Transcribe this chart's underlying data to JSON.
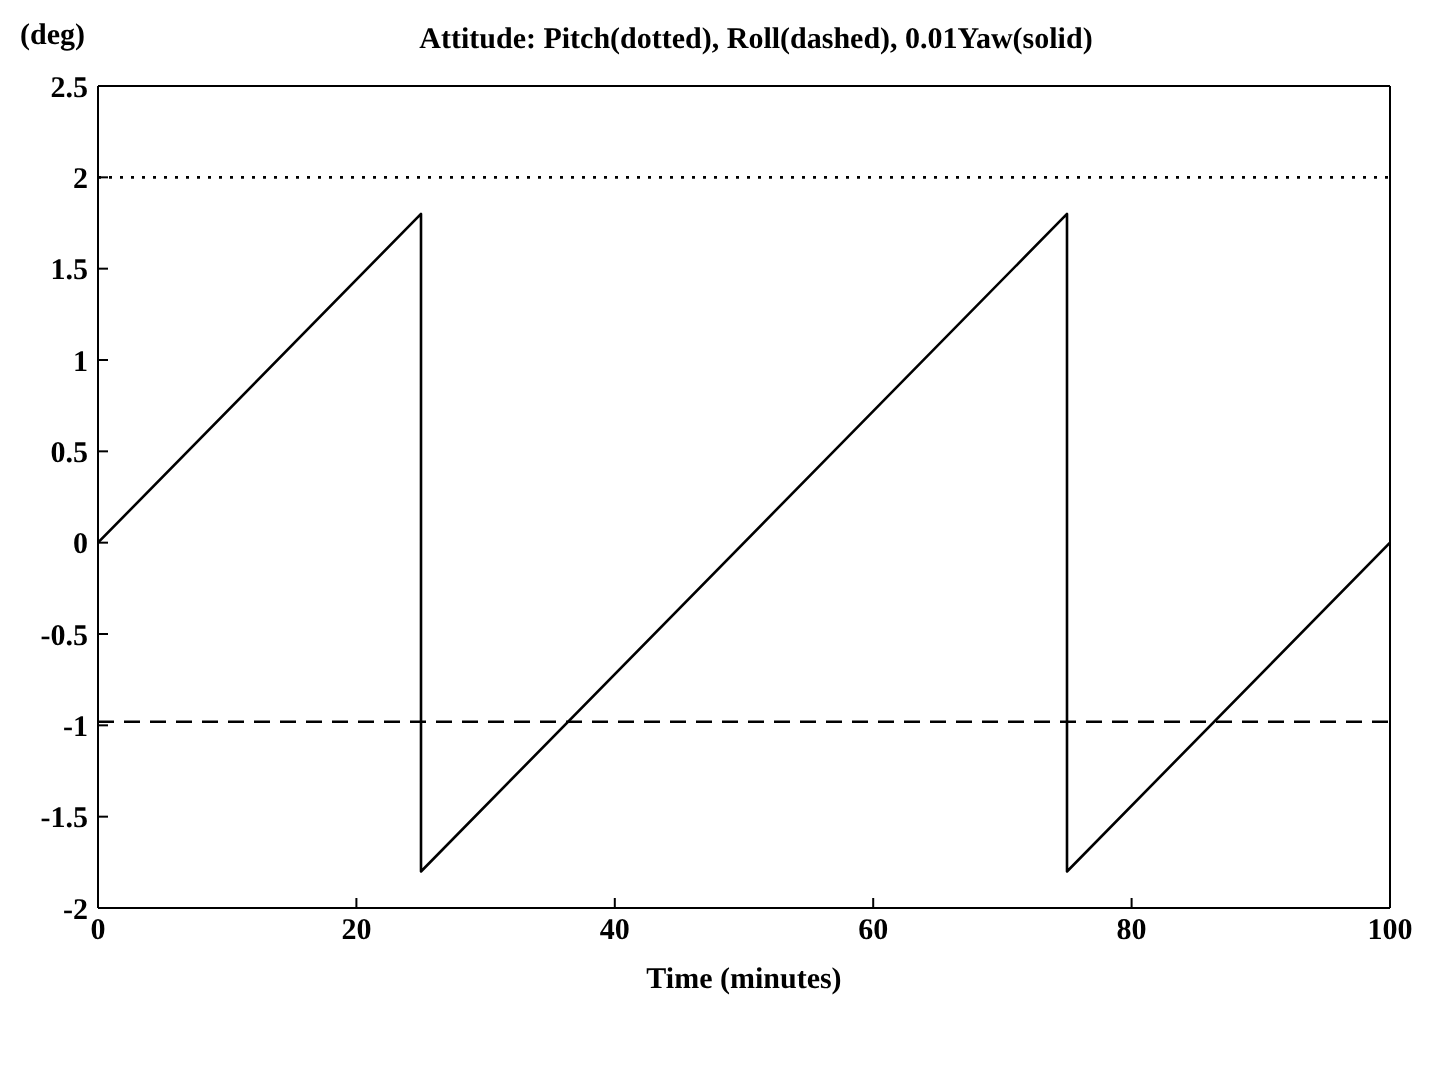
{
  "chart_data": {
    "type": "line",
    "title": "Attitude: Pitch(dotted), Roll(dashed), 0.01Yaw(solid)",
    "xlabel": "Time (minutes)",
    "ylabel": "(deg)",
    "xlim": [
      0,
      100
    ],
    "xticks": [
      0,
      20,
      40,
      60,
      80,
      100
    ],
    "ylim": [
      -2,
      2.5
    ],
    "yticks": [
      -2,
      -1.5,
      -1,
      -0.5,
      0,
      0.5,
      1,
      1.5,
      2,
      2.5
    ],
    "series": [
      {
        "color": "#000000",
        "line_style": "dotted",
        "x": [
          0,
          100
        ],
        "values": [
          2,
          2
        ]
      },
      {
        "color": "#000000",
        "line_style": "dashed",
        "x": [
          0,
          100
        ],
        "values": [
          -0.98,
          -0.98
        ]
      },
      {
        "color": "#000000",
        "line_style": "solid",
        "x": [
          0,
          25,
          25,
          75,
          75,
          100
        ],
        "values": [
          0,
          1.8,
          -1.8,
          1.8,
          -1.8,
          0
        ]
      }
    ]
  }
}
